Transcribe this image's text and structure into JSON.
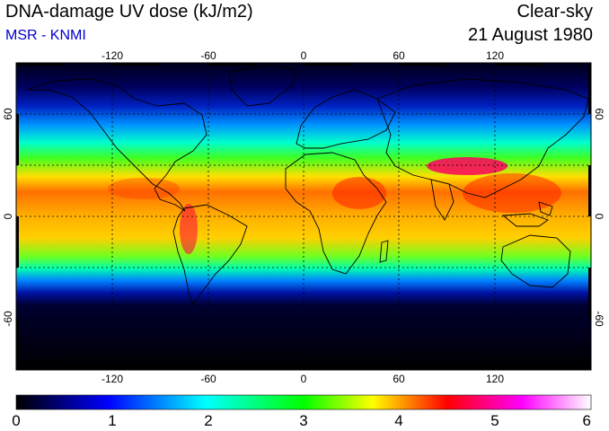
{
  "header": {
    "title": "DNA-damage UV dose (kJ/m2)",
    "subtitle": "MSR - KNMI",
    "sky": "Clear-sky",
    "date": "21 August 1980"
  },
  "map": {
    "projection": "equirectangular",
    "lon_range": [
      -180,
      180
    ],
    "lat_range": [
      -90,
      90
    ],
    "lon_ticks": [
      "-120",
      "-60",
      "0",
      "60",
      "120"
    ],
    "lat_ticks_left": [
      "60",
      "0",
      "-60"
    ],
    "lat_ticks_right": [
      "60",
      "0",
      "-60"
    ],
    "gridlines": "dotted every 30 degrees"
  },
  "colorbar": {
    "min": 0,
    "max": 6,
    "labels": [
      "0",
      "1",
      "2",
      "3",
      "4",
      "5",
      "6"
    ],
    "colors": [
      "#000000",
      "#0000ff",
      "#00ffff",
      "#00ff00",
      "#ffff00",
      "#ff0000",
      "#ff00ff",
      "#ffffff"
    ]
  }
}
